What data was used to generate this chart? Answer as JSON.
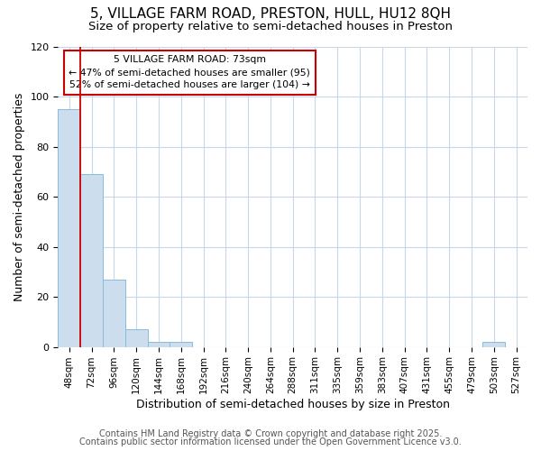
{
  "title1": "5, VILLAGE FARM ROAD, PRESTON, HULL, HU12 8QH",
  "title2": "Size of property relative to semi-detached houses in Preston",
  "xlabel": "Distribution of semi-detached houses by size in Preston",
  "ylabel": "Number of semi-detached properties",
  "bins": [
    "48sqm",
    "72sqm",
    "96sqm",
    "120sqm",
    "144sqm",
    "168sqm",
    "192sqm",
    "216sqm",
    "240sqm",
    "264sqm",
    "288sqm",
    "311sqm",
    "335sqm",
    "359sqm",
    "383sqm",
    "407sqm",
    "431sqm",
    "455sqm",
    "479sqm",
    "503sqm",
    "527sqm"
  ],
  "values": [
    95,
    69,
    27,
    7,
    2,
    2,
    0,
    0,
    0,
    0,
    0,
    0,
    0,
    0,
    0,
    0,
    0,
    0,
    0,
    2,
    0
  ],
  "bar_color": "#ccdded",
  "bar_edge_color": "#88bbdd",
  "vline_color": "#cc0000",
  "vline_x": 1,
  "annotation_title": "5 VILLAGE FARM ROAD: 73sqm",
  "annotation_line1": "← 47% of semi-detached houses are smaller (95)",
  "annotation_line2": "52% of semi-detached houses are larger (104) →",
  "annotation_box_color": "#ffffff",
  "annotation_box_edge": "#cc0000",
  "ylim": [
    0,
    120
  ],
  "yticks": [
    0,
    20,
    40,
    60,
    80,
    100,
    120
  ],
  "footer1": "Contains HM Land Registry data © Crown copyright and database right 2025.",
  "footer2": "Contains public sector information licensed under the Open Government Licence v3.0.",
  "bg_color": "#ffffff",
  "plot_bg_color": "#ffffff",
  "grid_color": "#c8d8e8",
  "title_fontsize": 11,
  "subtitle_fontsize": 9.5,
  "axis_label_fontsize": 9,
  "tick_fontsize": 7.5,
  "footer_fontsize": 7
}
